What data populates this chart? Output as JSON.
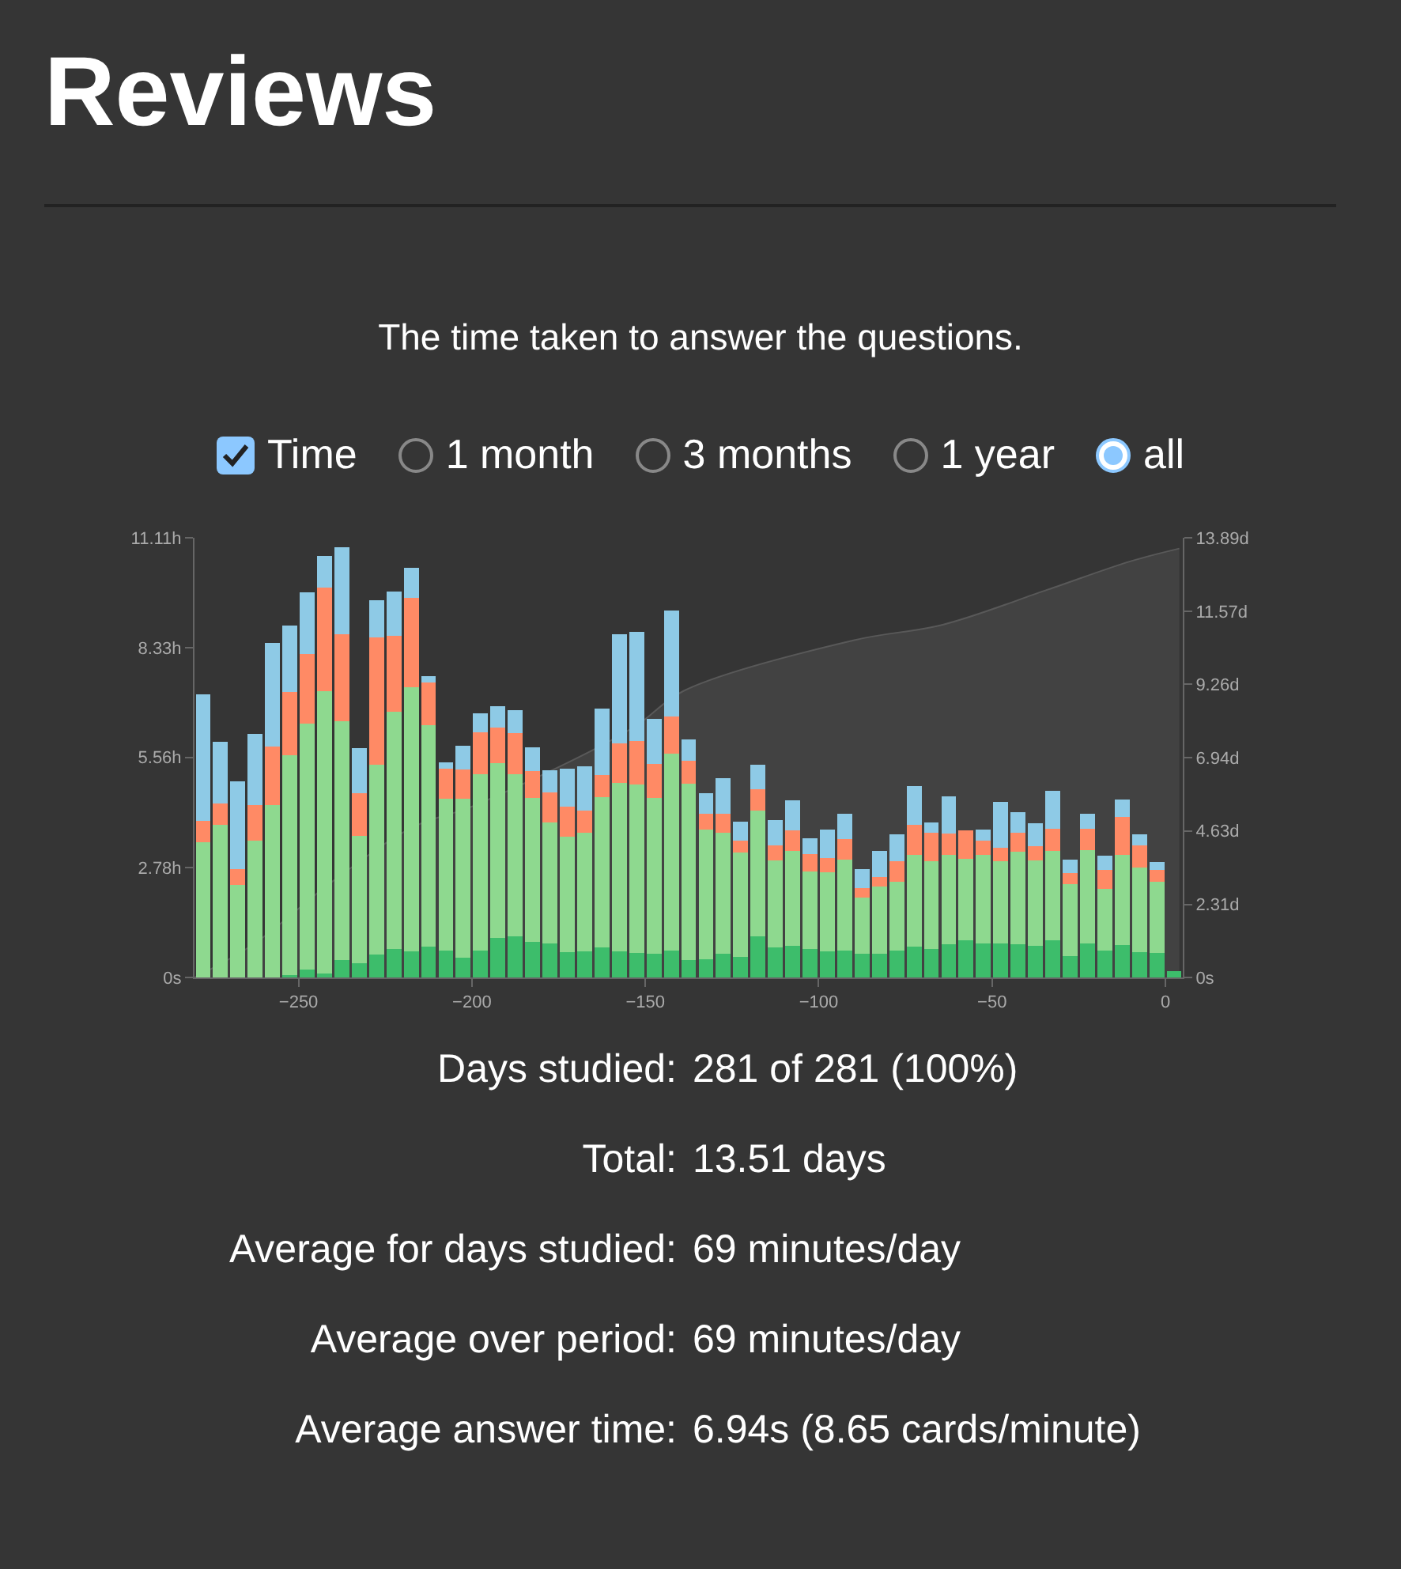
{
  "chart_data": {
    "type": "bar",
    "stacked": true,
    "title": "Reviews",
    "subtitle": "The time taken to answer the questions.",
    "x": [
      -277.5,
      -272.5,
      -267.5,
      -262.5,
      -257.5,
      -252.5,
      -247.5,
      -242.5,
      -237.5,
      -232.5,
      -227.5,
      -222.5,
      -217.5,
      -212.5,
      -207.5,
      -202.5,
      -197.5,
      -192.5,
      -187.5,
      -182.5,
      -177.5,
      -172.5,
      -167.5,
      -162.5,
      -157.5,
      -152.5,
      -147.5,
      -142.5,
      -137.5,
      -132.5,
      -127.5,
      -122.5,
      -117.5,
      -112.5,
      -107.5,
      -102.5,
      -97.5,
      -92.5,
      -87.5,
      -82.5,
      -77.5,
      -72.5,
      -67.5,
      -62.5,
      -57.5,
      -52.5,
      -47.5,
      -42.5,
      -37.5,
      -32.5,
      -27.5,
      -22.5,
      -17.5,
      -12.5,
      -7.5,
      -2.5,
      2.5
    ],
    "series": [
      {
        "color": "#3dbd6b",
        "values": [
          0,
          0,
          0,
          0,
          0,
          0.07,
          0.2,
          0.11,
          0.43,
          0.36,
          0.57,
          0.71,
          0.65,
          0.77,
          0.67,
          0.49,
          0.67,
          1.0,
          1.04,
          0.89,
          0.85,
          0.63,
          0.65,
          0.76,
          0.65,
          0.61,
          0.59,
          0.67,
          0.43,
          0.45,
          0.59,
          0.52,
          1.04,
          0.75,
          0.8,
          0.71,
          0.65,
          0.67,
          0.6,
          0.6,
          0.68,
          0.77,
          0.72,
          0.84,
          0.94,
          0.86,
          0.85,
          0.84,
          0.8,
          0.93,
          0.53,
          0.85,
          0.67,
          0.82,
          0.63,
          0.61,
          0.17
        ]
      },
      {
        "color": "#8ed98f",
        "values": [
          3.42,
          3.86,
          2.33,
          3.46,
          4.35,
          5.55,
          6.21,
          7.13,
          6.05,
          3.22,
          4.8,
          6.0,
          6.69,
          5.61,
          3.85,
          4.02,
          4.46,
          4.42,
          4.09,
          3.65,
          3.07,
          2.93,
          3.0,
          3.79,
          4.26,
          4.27,
          3.95,
          4.98,
          4.47,
          3.29,
          3.06,
          2.63,
          3.18,
          2.2,
          2.4,
          1.97,
          2.01,
          2.31,
          1.42,
          1.69,
          1.74,
          2.32,
          2.22,
          2.25,
          2.05,
          2.24,
          2.09,
          2.34,
          2.15,
          2.26,
          1.82,
          2.37,
          1.56,
          2.27,
          2.14,
          1.81,
          0
        ]
      },
      {
        "color": "#ff8a65",
        "values": [
          0.53,
          0.53,
          0.41,
          0.89,
          1.49,
          1.6,
          1.77,
          2.61,
          2.2,
          1.08,
          3.22,
          1.92,
          2.26,
          1.08,
          0.75,
          0.75,
          1.06,
          0.89,
          1.04,
          0.67,
          0.75,
          0.75,
          0.57,
          0.56,
          1.0,
          1.09,
          0.86,
          0.94,
          0.57,
          0.39,
          0.49,
          0.31,
          0.53,
          0.39,
          0.52,
          0.44,
          0.36,
          0.51,
          0.24,
          0.24,
          0.51,
          0.77,
          0.71,
          0.55,
          0.73,
          0.36,
          0.33,
          0.47,
          0.36,
          0.56,
          0.28,
          0.53,
          0.48,
          0.96,
          0.56,
          0.29,
          0
        ]
      },
      {
        "color": "#8ecae6",
        "values": [
          3.21,
          1.57,
          2.21,
          1.81,
          2.62,
          1.68,
          1.56,
          0.81,
          2.2,
          1.14,
          0.94,
          1.13,
          0.76,
          0.16,
          0.16,
          0.59,
          0.48,
          0.55,
          0.59,
          0.6,
          0.57,
          0.97,
          1.12,
          1.68,
          2.77,
          2.77,
          1.13,
          2.69,
          0.55,
          0.53,
          0.89,
          0.47,
          0.63,
          0.64,
          0.76,
          0.4,
          0.72,
          0.64,
          0.47,
          0.67,
          0.69,
          0.98,
          0.27,
          0.94,
          0,
          0.27,
          1.16,
          0.53,
          0.59,
          0.96,
          0.35,
          0.39,
          0.36,
          0.44,
          0.28,
          0.2,
          0
        ]
      },
      {
        "type": "area",
        "axis": "y2",
        "color": "#5c5c5c",
        "x": [
          -280,
          -263,
          -240,
          -217,
          -200,
          -164,
          -152,
          -139,
          -90,
          -64,
          -34,
          -10,
          4
        ],
        "values": [
          0,
          1.05,
          3.05,
          4.75,
          5.4,
          7.25,
          8,
          9.05,
          10.65,
          11.15,
          12.25,
          13.15,
          13.55
        ]
      }
    ],
    "xlim": [
      -280,
      5
    ],
    "xticks": [
      {
        "value": -250,
        "label": "−250"
      },
      {
        "value": -200,
        "label": "−200"
      },
      {
        "value": -150,
        "label": "−150"
      },
      {
        "value": -100,
        "label": "−100"
      },
      {
        "value": -50,
        "label": "−50"
      },
      0
    ],
    "ylim": [
      0,
      11.11
    ],
    "yticks": [
      {
        "value": 0,
        "label": "0s"
      },
      {
        "value": 2.78,
        "label": "2.78h"
      },
      {
        "value": 5.56,
        "label": "5.56h"
      },
      {
        "value": 8.33,
        "label": "8.33h"
      },
      {
        "value": 11.11,
        "label": "11.11h"
      }
    ],
    "y2lim": [
      0,
      13.89
    ],
    "y2ticks": [
      {
        "value": 0,
        "label": "0s"
      },
      {
        "value": 2.31,
        "label": "2.31d"
      },
      {
        "value": 4.63,
        "label": "4.63d"
      },
      {
        "value": 6.94,
        "label": "6.94d"
      },
      {
        "value": 9.26,
        "label": "9.26d"
      },
      {
        "value": 11.57,
        "label": "11.57d"
      },
      {
        "value": 13.89,
        "label": "13.89d"
      }
    ],
    "annotations": [
      "Time",
      "1 month",
      "3 months",
      "1 year",
      "all",
      "Days studied: 281 of 281 (100%)",
      "Total: 13.51 days",
      "Average for days studied: 69 minutes/day",
      "Average over period: 69 minutes/day",
      "Average answer time: 6.94s (8.65 cards/minute)"
    ]
  }
}
